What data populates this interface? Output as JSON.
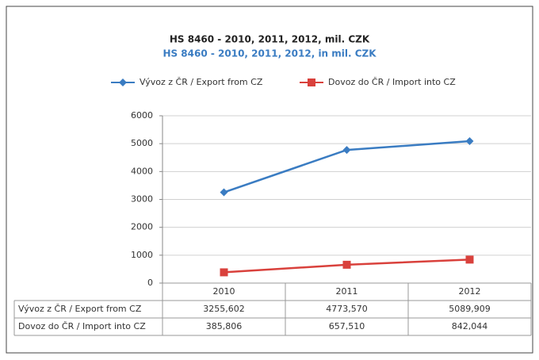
{
  "chart_data": {
    "type": "line",
    "title": "HS 8460 - 2010, 2011, 2012, mil. CZK",
    "subtitle": "HS 8460 - 2010, 2011, 2012, in mil. CZK",
    "categories": [
      "2010",
      "2011",
      "2012"
    ],
    "series": [
      {
        "name": "Vývoz z ČR / Export from CZ",
        "color": "#3a7cc2",
        "marker": "diamond",
        "values": [
          3255.602,
          4773.57,
          5089.909
        ],
        "value_labels": [
          "3255,602",
          "4773,570",
          "5089,909"
        ]
      },
      {
        "name": "Dovoz do ČR / Import into CZ",
        "color": "#d9413c",
        "marker": "square",
        "values": [
          385.806,
          657.51,
          842.044
        ],
        "value_labels": [
          "385,806",
          "657,510",
          "842,044"
        ]
      }
    ],
    "ylim": [
      0,
      6000
    ],
    "yticks": [
      0,
      1000,
      2000,
      3000,
      4000,
      5000,
      6000
    ],
    "grid": true
  }
}
